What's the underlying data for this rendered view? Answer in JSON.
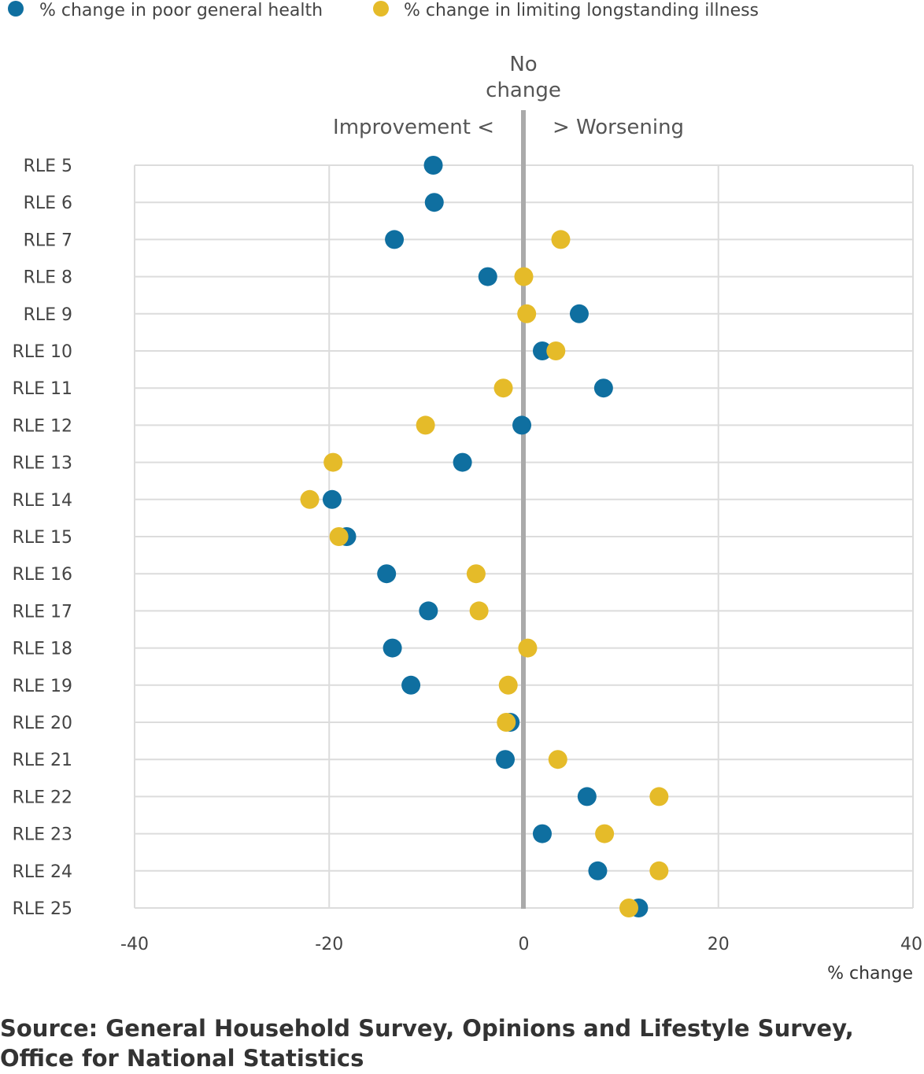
{
  "legend": {
    "position": "top-left",
    "items": [
      {
        "label": "% change in poor general health",
        "color": "#0f6fa0"
      },
      {
        "label": "% change in limiting longstanding illness",
        "color": "#e5bb29"
      }
    ]
  },
  "annotations": {
    "no_change_line1": "No",
    "no_change_line2": "change",
    "improvement": "Improvement <",
    "worsening": "> Worsening"
  },
  "source": "Source: General Household Survey, Opinions and Lifestyle Survey, Office for National Statistics",
  "chart_data": {
    "type": "scatter",
    "xlabel": "% change",
    "xlim": [
      -40,
      40
    ],
    "xticks": [
      "-40",
      "-20",
      "0",
      "20",
      "40"
    ],
    "grid": true,
    "reference_line_x": 0,
    "categories": [
      "RLE 5",
      "RLE 6",
      "RLE 7",
      "RLE 8",
      "RLE 9",
      "RLE 10",
      "RLE 11",
      "RLE 12",
      "RLE 13",
      "RLE 14",
      "RLE 15",
      "RLE 16",
      "RLE 17",
      "RLE 18",
      "RLE 19",
      "RLE 20",
      "RLE 21",
      "RLE 22",
      "RLE 23",
      "RLE 24",
      "RLE 25"
    ],
    "series": [
      {
        "name": "% change in poor general health",
        "color": "#0f6fa0",
        "values": [
          -9.3,
          -9.2,
          -13.3,
          -3.7,
          5.7,
          1.9,
          8.2,
          -0.2,
          -6.3,
          -19.7,
          -18.2,
          -14.1,
          -9.8,
          -13.5,
          -11.6,
          -1.4,
          -1.9,
          6.5,
          1.9,
          7.6,
          11.8
        ]
      },
      {
        "name": "% change in limiting longstanding illness",
        "color": "#e5bb29",
        "values": [
          null,
          null,
          3.8,
          0.0,
          0.3,
          3.3,
          -2.1,
          -10.1,
          -19.6,
          -22.0,
          -19.0,
          -4.9,
          -4.6,
          0.4,
          -1.6,
          -1.8,
          3.5,
          13.9,
          8.3,
          13.9,
          10.8
        ]
      }
    ]
  }
}
